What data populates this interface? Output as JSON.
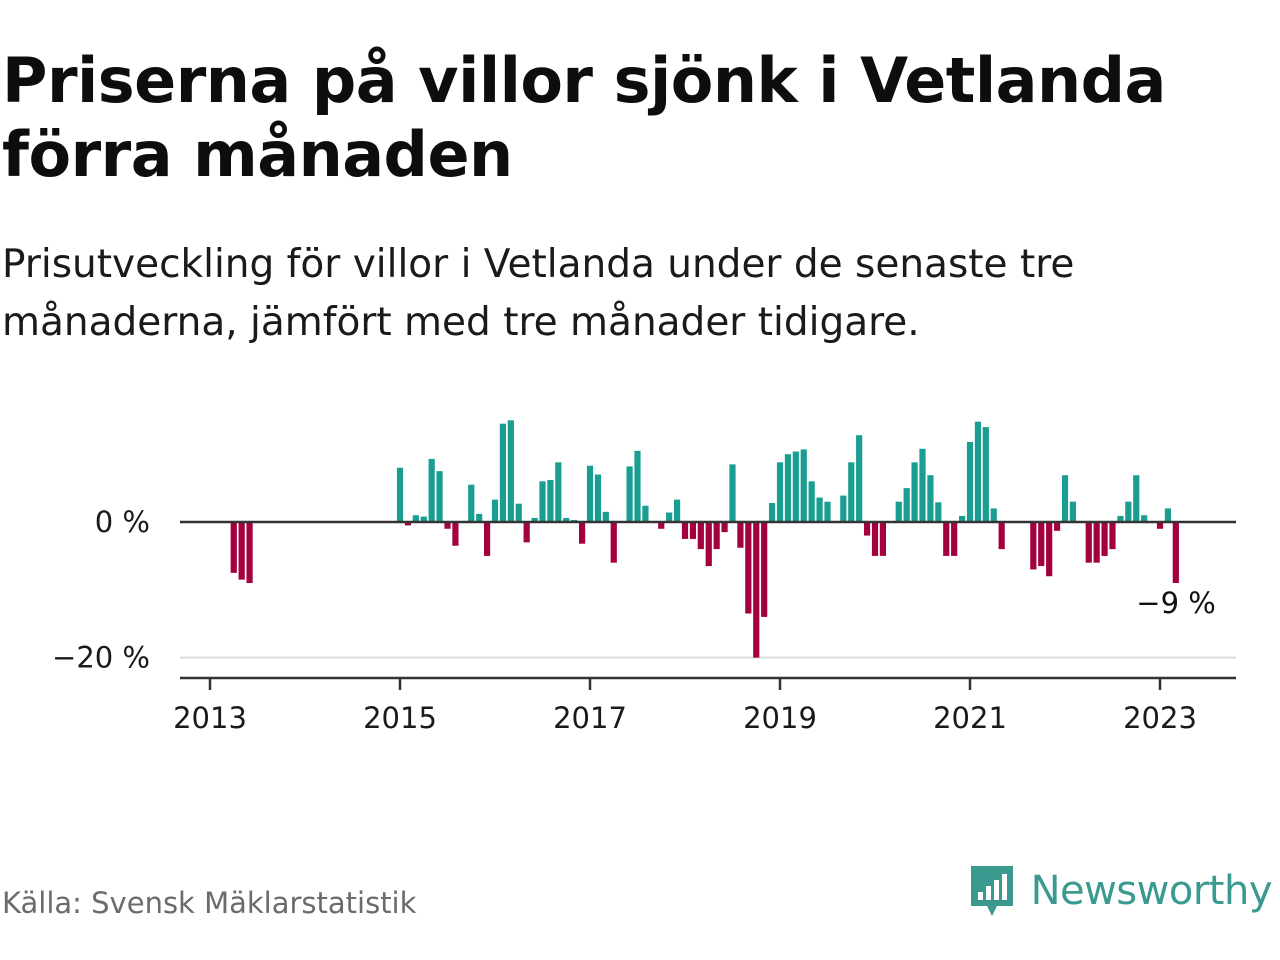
{
  "header": {
    "title": "Priserna på villor sjönk i Vetlanda förra månaden",
    "subtitle": "Prisutveckling för villor i Vetlanda under de senaste tre månaderna, jämfört med tre månader tidigare."
  },
  "footer": {
    "source": "Källa: Svensk Mäklarstatistik",
    "brand": "Newsworthy",
    "brand_icon": "newsworthy-logo-icon"
  },
  "colors": {
    "positive": "#1a9e92",
    "negative": "#a3003f",
    "zero_line": "#333333",
    "grid": "#dddddd",
    "axis": "#333333",
    "brand": "#3a9a8f"
  },
  "chart_data": {
    "type": "bar",
    "title": "Priserna på villor sjönk i Vetlanda förra månaden",
    "subtitle": "Prisutveckling för villor i Vetlanda under de senaste tre månaderna, jämfört med tre månader tidigare.",
    "xlabel": "",
    "ylabel": "",
    "x_ticks": [
      "2013",
      "2015",
      "2017",
      "2019",
      "2021",
      "2023"
    ],
    "y_ticks": [
      {
        "value": 0,
        "label": "0 %"
      },
      {
        "value": -20,
        "label": "−20 %"
      }
    ],
    "ylim": [
      -23,
      15.5
    ],
    "grid": "horizontal at -20",
    "end_label": "−9 %",
    "series": [
      {
        "values": [
          {
            "date": "2013-04",
            "value": -7.5
          },
          {
            "date": "2013-05",
            "value": -8.5
          },
          {
            "date": "2013-06",
            "value": -9
          },
          {
            "date": "2015-01",
            "value": 8
          },
          {
            "date": "2015-02",
            "value": -0.5
          },
          {
            "date": "2015-03",
            "value": 1
          },
          {
            "date": "2015-04",
            "value": 0.8
          },
          {
            "date": "2015-05",
            "value": 9.3
          },
          {
            "date": "2015-06",
            "value": 7.5
          },
          {
            "date": "2015-07",
            "value": -1
          },
          {
            "date": "2015-08",
            "value": -3.5
          },
          {
            "date": "2015-10",
            "value": 5.5
          },
          {
            "date": "2015-11",
            "value": 1.2
          },
          {
            "date": "2015-12",
            "value": -5
          },
          {
            "date": "2016-01",
            "value": 3.3
          },
          {
            "date": "2016-02",
            "value": 14.5
          },
          {
            "date": "2016-03",
            "value": 15
          },
          {
            "date": "2016-04",
            "value": 2.7
          },
          {
            "date": "2016-05",
            "value": -3
          },
          {
            "date": "2016-06",
            "value": 0.6
          },
          {
            "date": "2016-07",
            "value": 6
          },
          {
            "date": "2016-08",
            "value": 6.2
          },
          {
            "date": "2016-09",
            "value": 8.8
          },
          {
            "date": "2016-10",
            "value": 0.6
          },
          {
            "date": "2016-11",
            "value": 0.3
          },
          {
            "date": "2016-12",
            "value": -3.2
          },
          {
            "date": "2017-01",
            "value": 8.3
          },
          {
            "date": "2017-02",
            "value": 7
          },
          {
            "date": "2017-03",
            "value": 1.5
          },
          {
            "date": "2017-04",
            "value": -6
          },
          {
            "date": "2017-06",
            "value": 8.2
          },
          {
            "date": "2017-07",
            "value": 10.5
          },
          {
            "date": "2017-08",
            "value": 2.4
          },
          {
            "date": "2017-10",
            "value": -1
          },
          {
            "date": "2017-11",
            "value": 1.4
          },
          {
            "date": "2017-12",
            "value": 3.3
          },
          {
            "date": "2018-01",
            "value": -2.5
          },
          {
            "date": "2018-02",
            "value": -2.5
          },
          {
            "date": "2018-03",
            "value": -4
          },
          {
            "date": "2018-04",
            "value": -6.5
          },
          {
            "date": "2018-05",
            "value": -4
          },
          {
            "date": "2018-06",
            "value": -1.5
          },
          {
            "date": "2018-07",
            "value": 8.5
          },
          {
            "date": "2018-08",
            "value": -3.8
          },
          {
            "date": "2018-09",
            "value": -13.5
          },
          {
            "date": "2018-10",
            "value": -20
          },
          {
            "date": "2018-11",
            "value": -14
          },
          {
            "date": "2018-12",
            "value": 2.8
          },
          {
            "date": "2019-01",
            "value": 8.8
          },
          {
            "date": "2019-02",
            "value": 10
          },
          {
            "date": "2019-03",
            "value": 10.4
          },
          {
            "date": "2019-04",
            "value": 10.7
          },
          {
            "date": "2019-05",
            "value": 6
          },
          {
            "date": "2019-06",
            "value": 3.6
          },
          {
            "date": "2019-07",
            "value": 3
          },
          {
            "date": "2019-09",
            "value": 3.9
          },
          {
            "date": "2019-10",
            "value": 8.8
          },
          {
            "date": "2019-11",
            "value": 12.8
          },
          {
            "date": "2019-12",
            "value": -2
          },
          {
            "date": "2020-01",
            "value": -5
          },
          {
            "date": "2020-02",
            "value": -5
          },
          {
            "date": "2020-04",
            "value": 3
          },
          {
            "date": "2020-05",
            "value": 5
          },
          {
            "date": "2020-06",
            "value": 8.8
          },
          {
            "date": "2020-07",
            "value": 10.8
          },
          {
            "date": "2020-08",
            "value": 6.9
          },
          {
            "date": "2020-09",
            "value": 2.9
          },
          {
            "date": "2020-10",
            "value": -5
          },
          {
            "date": "2020-11",
            "value": -5
          },
          {
            "date": "2020-12",
            "value": 0.9
          },
          {
            "date": "2021-01",
            "value": 11.8
          },
          {
            "date": "2021-02",
            "value": 14.8
          },
          {
            "date": "2021-03",
            "value": 14
          },
          {
            "date": "2021-04",
            "value": 2
          },
          {
            "date": "2021-05",
            "value": -4
          },
          {
            "date": "2021-09",
            "value": -7
          },
          {
            "date": "2021-10",
            "value": -6.5
          },
          {
            "date": "2021-11",
            "value": -8
          },
          {
            "date": "2021-12",
            "value": -1.3
          },
          {
            "date": "2022-01",
            "value": 6.9
          },
          {
            "date": "2022-02",
            "value": 3
          },
          {
            "date": "2022-04",
            "value": -6
          },
          {
            "date": "2022-05",
            "value": -6
          },
          {
            "date": "2022-06",
            "value": -5
          },
          {
            "date": "2022-07",
            "value": -4
          },
          {
            "date": "2022-08",
            "value": 0.9
          },
          {
            "date": "2022-09",
            "value": 3
          },
          {
            "date": "2022-10",
            "value": 6.9
          },
          {
            "date": "2022-11",
            "value": 1
          },
          {
            "date": "2023-01",
            "value": -1
          },
          {
            "date": "2023-02",
            "value": 2
          },
          {
            "date": "2023-03",
            "value": -9
          }
        ]
      }
    ]
  }
}
